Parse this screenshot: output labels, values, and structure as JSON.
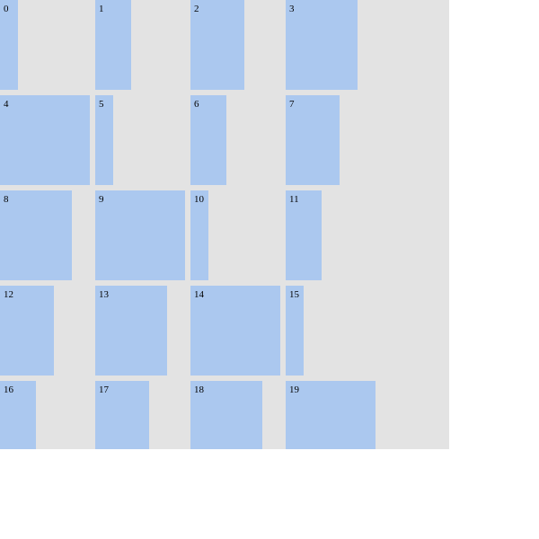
{
  "colors": {
    "container_background": "#e3e3e3",
    "cell_fill": "#abc8ef",
    "label_text": "#000000",
    "page_background": "#ffffff"
  },
  "cells": [
    {
      "label": "0"
    },
    {
      "label": "1"
    },
    {
      "label": "2"
    },
    {
      "label": "3"
    },
    {
      "label": "4"
    },
    {
      "label": "5"
    },
    {
      "label": "6"
    },
    {
      "label": "7"
    },
    {
      "label": "8"
    },
    {
      "label": "9"
    },
    {
      "label": "10"
    },
    {
      "label": "11"
    },
    {
      "label": "12"
    },
    {
      "label": "13"
    },
    {
      "label": "14"
    },
    {
      "label": "15"
    },
    {
      "label": "16"
    },
    {
      "label": "17"
    },
    {
      "label": "18"
    },
    {
      "label": "19"
    }
  ]
}
